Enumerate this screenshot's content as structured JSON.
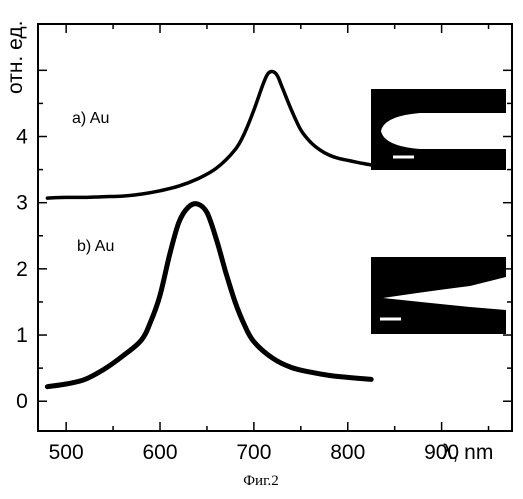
{
  "figure": {
    "caption": "Фиг.2"
  },
  "chart_data": {
    "type": "line",
    "xlabel": "λ, nm",
    "ylabel": "отн. ед.",
    "xlim": [
      470,
      975
    ],
    "ylim": [
      -0.45,
      5.7
    ],
    "xticks": [
      500,
      600,
      700,
      800,
      900
    ],
    "yticks": [
      0,
      1,
      2,
      3,
      4
    ],
    "grid": false,
    "series": [
      {
        "name": "a) Au",
        "x": [
          480,
          500,
          520,
          540,
          560,
          580,
          600,
          620,
          640,
          660,
          680,
          690,
          700,
          710,
          715,
          720,
          725,
          730,
          740,
          750,
          760,
          770,
          780,
          790,
          800,
          810,
          825
        ],
        "y": [
          3.07,
          3.08,
          3.08,
          3.09,
          3.1,
          3.13,
          3.18,
          3.25,
          3.36,
          3.52,
          3.8,
          4.05,
          4.4,
          4.8,
          4.95,
          4.98,
          4.92,
          4.75,
          4.4,
          4.1,
          3.92,
          3.8,
          3.72,
          3.67,
          3.64,
          3.61,
          3.57
        ]
      },
      {
        "name": "b) Au",
        "x": [
          480,
          500,
          520,
          540,
          560,
          580,
          590,
          600,
          610,
          620,
          630,
          640,
          650,
          660,
          670,
          680,
          690,
          700,
          720,
          740,
          760,
          780,
          800,
          825
        ],
        "y": [
          0.22,
          0.26,
          0.33,
          0.48,
          0.68,
          0.92,
          1.2,
          1.6,
          2.2,
          2.7,
          2.93,
          2.98,
          2.85,
          2.45,
          1.95,
          1.5,
          1.15,
          0.9,
          0.65,
          0.51,
          0.44,
          0.39,
          0.36,
          0.33
        ]
      }
    ]
  }
}
